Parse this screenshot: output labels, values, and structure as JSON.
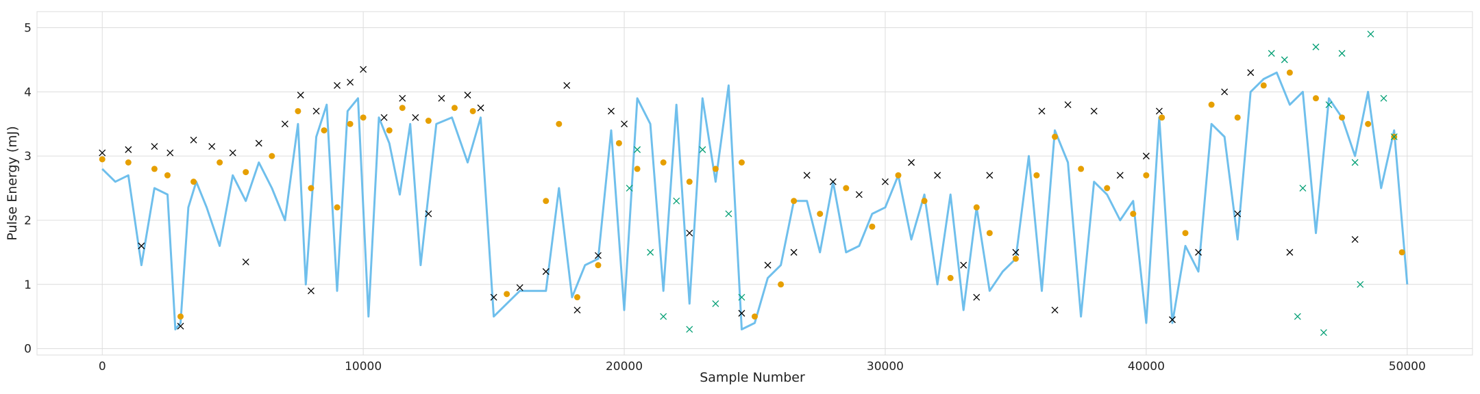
{
  "chart_data": {
    "type": "scatter",
    "title": "",
    "xlabel": "Sample Number",
    "ylabel": "Pulse Energy (mJ)",
    "xlim": [
      -2500,
      52500
    ],
    "ylim": [
      -0.1,
      5.25
    ],
    "xticks": [
      0,
      10000,
      20000,
      30000,
      40000,
      50000
    ],
    "xtick_labels": [
      "0",
      "10000",
      "20000",
      "30000",
      "40000",
      "50000"
    ],
    "yticks": [
      0,
      1,
      2,
      3,
      4,
      5
    ],
    "ytick_labels": [
      "0",
      "1",
      "2",
      "3",
      "4",
      "5"
    ],
    "grid": true,
    "legend": "none",
    "colors": {
      "line": "#56B4E9",
      "black_marker": "#000000",
      "orange_marker": "#E69F00",
      "green_marker": "#009E73"
    },
    "series": [
      {
        "marker": "x",
        "color": "#000000",
        "points": [
          [
            0,
            3.05
          ],
          [
            1000,
            3.1
          ],
          [
            2000,
            3.15
          ],
          [
            2600,
            3.05
          ],
          [
            3000,
            0.35
          ],
          [
            3500,
            3.25
          ],
          [
            4200,
            3.15
          ],
          [
            5000,
            3.05
          ],
          [
            6000,
            3.2
          ],
          [
            7000,
            3.5
          ],
          [
            7600,
            3.95
          ],
          [
            8200,
            3.7
          ],
          [
            9000,
            4.1
          ],
          [
            9500,
            4.15
          ],
          [
            10000,
            4.35
          ],
          [
            10800,
            3.6
          ],
          [
            11500,
            3.9
          ],
          [
            12000,
            3.6
          ],
          [
            13000,
            3.9
          ],
          [
            14000,
            3.95
          ],
          [
            14500,
            3.75
          ],
          [
            15000,
            0.8
          ],
          [
            16000,
            0.95
          ],
          [
            17000,
            1.2
          ],
          [
            17800,
            4.1
          ],
          [
            18200,
            0.6
          ],
          [
            19000,
            1.45
          ],
          [
            19500,
            3.7
          ],
          [
            20000,
            3.5
          ],
          [
            24500,
            0.55
          ],
          [
            25500,
            1.3
          ],
          [
            26500,
            1.5
          ],
          [
            27000,
            2.7
          ],
          [
            28000,
            2.6
          ],
          [
            29000,
            2.4
          ],
          [
            30000,
            2.6
          ],
          [
            31000,
            2.9
          ],
          [
            32000,
            2.7
          ],
          [
            33000,
            1.3
          ],
          [
            34000,
            2.7
          ],
          [
            35000,
            1.5
          ],
          [
            36000,
            3.7
          ],
          [
            37000,
            3.8
          ],
          [
            38000,
            3.7
          ],
          [
            39000,
            2.7
          ],
          [
            40000,
            3.0
          ],
          [
            40500,
            3.7
          ],
          [
            41000,
            0.45
          ],
          [
            42000,
            1.5
          ],
          [
            43000,
            4.0
          ],
          [
            44000,
            4.3
          ],
          [
            1500,
            1.6
          ],
          [
            5500,
            1.35
          ],
          [
            8000,
            0.9
          ],
          [
            12500,
            2.1
          ],
          [
            22500,
            1.8
          ],
          [
            33500,
            0.8
          ],
          [
            36500,
            0.6
          ],
          [
            45500,
            1.5
          ],
          [
            48000,
            1.7
          ],
          [
            43500,
            2.1
          ]
        ]
      },
      {
        "marker": "o",
        "color": "#E69F00",
        "points": [
          [
            0,
            2.95
          ],
          [
            1000,
            2.9
          ],
          [
            2000,
            2.8
          ],
          [
            2500,
            2.7
          ],
          [
            3000,
            0.5
          ],
          [
            3500,
            2.6
          ],
          [
            4500,
            2.9
          ],
          [
            5500,
            2.75
          ],
          [
            6500,
            3.0
          ],
          [
            7500,
            3.7
          ],
          [
            8000,
            2.5
          ],
          [
            8500,
            3.4
          ],
          [
            9000,
            2.2
          ],
          [
            9500,
            3.5
          ],
          [
            10000,
            3.6
          ],
          [
            11000,
            3.4
          ],
          [
            11500,
            3.75
          ],
          [
            12500,
            3.55
          ],
          [
            13500,
            3.75
          ],
          [
            14200,
            3.7
          ],
          [
            15500,
            0.85
          ],
          [
            17000,
            2.3
          ],
          [
            17500,
            3.5
          ],
          [
            18200,
            0.8
          ],
          [
            19000,
            1.3
          ],
          [
            19800,
            3.2
          ],
          [
            20500,
            2.8
          ],
          [
            21500,
            2.9
          ],
          [
            22500,
            2.6
          ],
          [
            23500,
            2.8
          ],
          [
            24500,
            2.9
          ],
          [
            25000,
            0.5
          ],
          [
            26000,
            1.0
          ],
          [
            26500,
            2.3
          ],
          [
            27500,
            2.1
          ],
          [
            28500,
            2.5
          ],
          [
            29500,
            1.9
          ],
          [
            30500,
            2.7
          ],
          [
            31500,
            2.3
          ],
          [
            32500,
            1.1
          ],
          [
            33500,
            2.2
          ],
          [
            34000,
            1.8
          ],
          [
            35000,
            1.4
          ],
          [
            35800,
            2.7
          ],
          [
            36500,
            3.3
          ],
          [
            37500,
            2.8
          ],
          [
            38500,
            2.5
          ],
          [
            39500,
            2.1
          ],
          [
            40000,
            2.7
          ],
          [
            40600,
            3.6
          ],
          [
            41500,
            1.8
          ],
          [
            42500,
            3.8
          ],
          [
            43500,
            3.6
          ],
          [
            44500,
            4.1
          ],
          [
            45500,
            4.3
          ],
          [
            46500,
            3.9
          ],
          [
            47500,
            3.6
          ],
          [
            48500,
            3.5
          ],
          [
            49500,
            3.3
          ],
          [
            49800,
            1.5
          ]
        ]
      },
      {
        "marker": "x",
        "color": "#009E73",
        "points": [
          [
            20200,
            2.5
          ],
          [
            20500,
            3.1
          ],
          [
            21000,
            1.5
          ],
          [
            21500,
            0.5
          ],
          [
            22000,
            2.3
          ],
          [
            22500,
            0.3
          ],
          [
            23000,
            3.1
          ],
          [
            23500,
            0.7
          ],
          [
            24000,
            2.1
          ],
          [
            24500,
            0.8
          ],
          [
            44800,
            4.6
          ],
          [
            45300,
            4.5
          ],
          [
            46000,
            2.5
          ],
          [
            46500,
            4.7
          ],
          [
            47000,
            3.8
          ],
          [
            47500,
            4.6
          ],
          [
            48000,
            2.9
          ],
          [
            48600,
            4.9
          ],
          [
            49100,
            3.9
          ],
          [
            49500,
            3.3
          ],
          [
            45800,
            0.5
          ],
          [
            46800,
            0.25
          ],
          [
            48200,
            1.0
          ]
        ]
      }
    ],
    "line_series": {
      "color": "#56B4E9",
      "x": [
        0,
        500,
        1000,
        1500,
        2000,
        2500,
        2800,
        3000,
        3300,
        3600,
        4000,
        4500,
        5000,
        5500,
        6000,
        6500,
        7000,
        7500,
        7800,
        8200,
        8600,
        9000,
        9400,
        9800,
        10200,
        10600,
        11000,
        11400,
        11800,
        12200,
        12800,
        13400,
        14000,
        14500,
        15000,
        16000,
        17000,
        17500,
        18000,
        18500,
        19000,
        19500,
        20000,
        20500,
        21000,
        21500,
        22000,
        22500,
        23000,
        23500,
        24000,
        24500,
        25000,
        25500,
        26000,
        26500,
        27000,
        27500,
        28000,
        28500,
        29000,
        29500,
        30000,
        30500,
        31000,
        31500,
        32000,
        32500,
        33000,
        33500,
        34000,
        34500,
        35000,
        35500,
        36000,
        36500,
        37000,
        37500,
        38000,
        38500,
        39000,
        39500,
        40000,
        40500,
        41000,
        41500,
        42000,
        42500,
        43000,
        43500,
        44000,
        44500,
        45000,
        45500,
        46000,
        46500,
        47000,
        47500,
        48000,
        48500,
        49000,
        49500,
        50000
      ],
      "y": [
        2.8,
        2.6,
        2.7,
        1.3,
        2.5,
        2.4,
        0.3,
        0.4,
        2.2,
        2.6,
        2.2,
        1.6,
        2.7,
        2.3,
        2.9,
        2.5,
        2.0,
        3.5,
        1.0,
        3.3,
        3.8,
        0.9,
        3.7,
        3.9,
        0.5,
        3.6,
        3.2,
        2.4,
        3.5,
        1.3,
        3.5,
        3.6,
        2.9,
        3.6,
        0.5,
        0.9,
        0.9,
        2.5,
        0.8,
        1.3,
        1.4,
        3.4,
        0.6,
        3.9,
        3.5,
        0.9,
        3.8,
        0.7,
        3.9,
        2.6,
        4.1,
        0.3,
        0.4,
        1.1,
        1.3,
        2.3,
        2.3,
        1.5,
        2.6,
        1.5,
        1.6,
        2.1,
        2.2,
        2.7,
        1.7,
        2.4,
        1.0,
        2.4,
        0.6,
        2.2,
        0.9,
        1.2,
        1.4,
        3.0,
        0.9,
        3.4,
        2.9,
        0.5,
        2.6,
        2.4,
        2.0,
        2.3,
        0.4,
        3.6,
        0.4,
        1.6,
        1.2,
        3.5,
        3.3,
        1.7,
        4.0,
        4.2,
        4.3,
        3.8,
        4.0,
        1.8,
        3.9,
        3.6,
        3.0,
        4.0,
        2.5,
        3.4,
        1.0
      ]
    }
  }
}
